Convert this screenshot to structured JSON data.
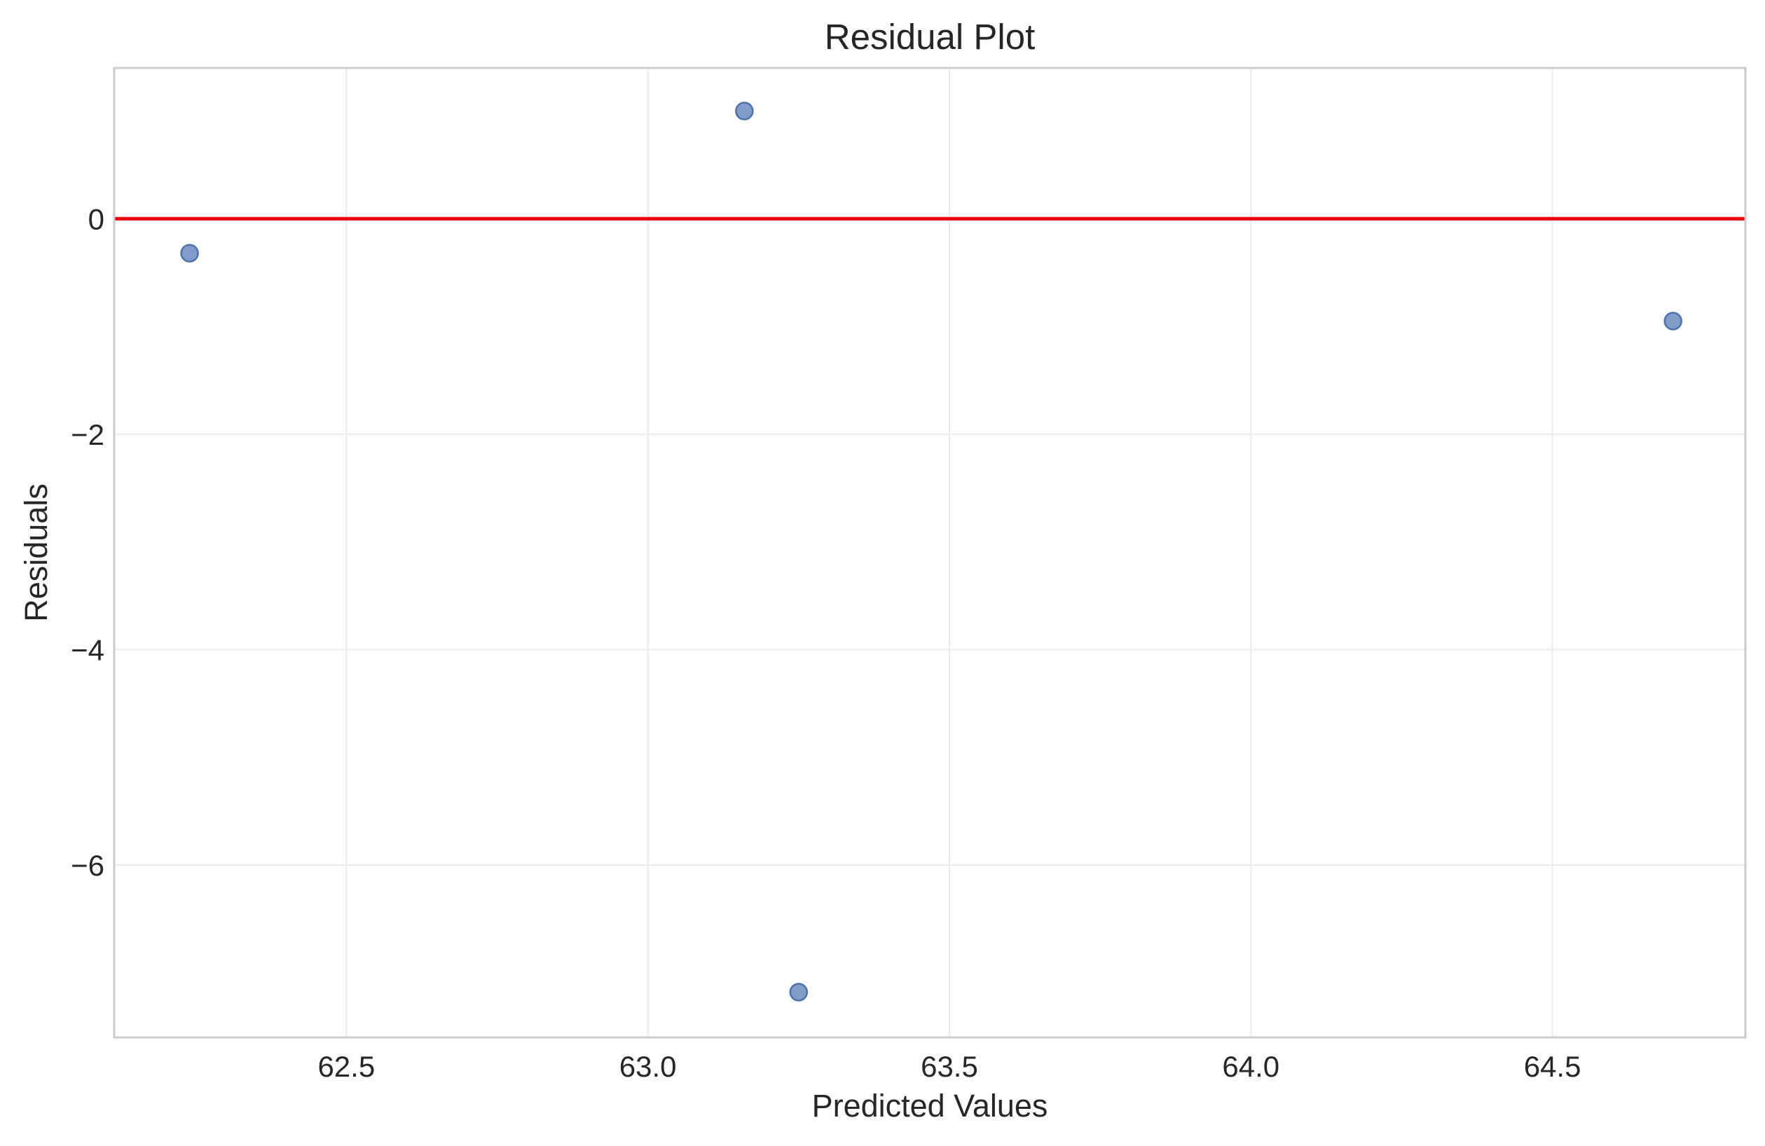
{
  "chart_data": {
    "type": "scatter",
    "title": "Residual Plot",
    "xlabel": "Predicted Values",
    "ylabel": "Residuals",
    "xlim": [
      62.115,
      64.82
    ],
    "ylim": [
      -7.6,
      1.4
    ],
    "x_ticks": [
      62.5,
      63.0,
      63.5,
      64.0,
      64.5
    ],
    "x_tick_labels": [
      "62.5",
      "63.0",
      "63.5",
      "64.0",
      "64.5"
    ],
    "y_ticks": [
      0,
      -2,
      -4,
      -6
    ],
    "y_tick_labels": [
      "0",
      "−2",
      "−4",
      "−6"
    ],
    "grid": true,
    "points": [
      {
        "x": 62.24,
        "y": -0.32
      },
      {
        "x": 63.16,
        "y": 1.0
      },
      {
        "x": 63.25,
        "y": -7.18
      },
      {
        "x": 64.7,
        "y": -0.95
      }
    ],
    "reference_line": {
      "y": 0,
      "color": "#e8000b"
    },
    "point_color": "#4c72b0"
  }
}
